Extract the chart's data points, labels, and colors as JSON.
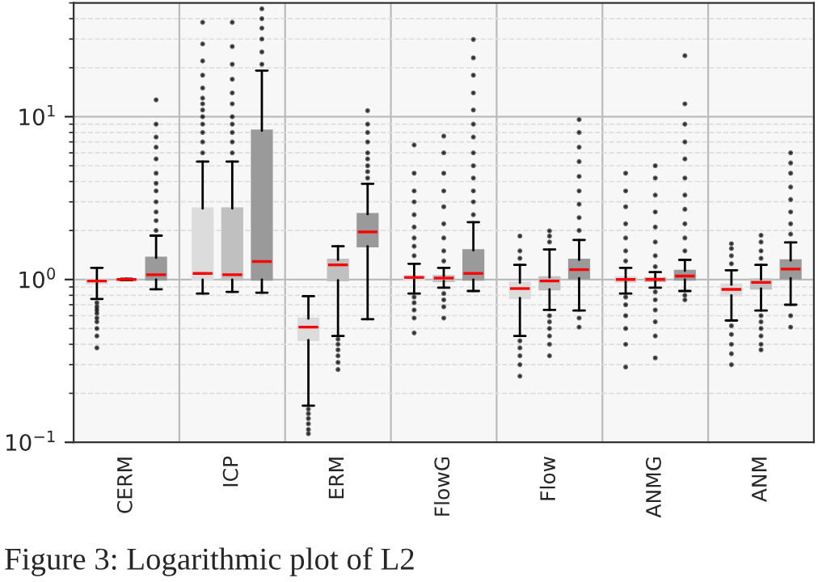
{
  "chart_data": {
    "type": "box",
    "categories": [
      "CERM",
      "ICP",
      "ERM",
      "FlowG",
      "Flow",
      "ANMG",
      "ANM"
    ],
    "log": true,
    "grid": true,
    "ylim": [
      0.1,
      50
    ],
    "yticks": [
      {
        "value": 0.1,
        "label": "10$^{−1}$"
      },
      {
        "value": 1,
        "label": "10$^{0}$"
      },
      {
        "value": 10,
        "label": "10$^{1}$"
      }
    ],
    "series": [
      {
        "color": "#dcdcdc",
        "boxes": [
          {
            "low": 0.76,
            "q1": 0.95,
            "median": 0.98,
            "q3": 1.0,
            "high": 1.18,
            "outliers": [
              0.72,
              0.68,
              0.65,
              0.62,
              0.58,
              0.55,
              0.5,
              0.45,
              0.38
            ]
          },
          {
            "low": 0.82,
            "q1": 1.0,
            "median": 1.09,
            "q3": 2.73,
            "high": 5.3,
            "outliers": [
              6,
              7,
              8,
              9,
              10,
              11,
              12,
              13,
              15,
              18,
              22,
              28,
              38
            ]
          },
          {
            "low": 0.168,
            "q1": 0.425,
            "median": 0.51,
            "q3": 0.575,
            "high": 0.79,
            "outliers": [
              0.16,
              0.15,
              0.14,
              0.13,
              0.12,
              0.113
            ]
          },
          {
            "low": 0.82,
            "q1": 1.0,
            "median": 1.03,
            "q3": 1.05,
            "high": 1.25,
            "outliers": [
              1.4,
              1.6,
              1.8,
              2.1,
              2.5,
              3,
              3.5,
              4.5,
              6.7,
              0.78,
              0.72,
              0.65,
              0.58,
              0.47
            ]
          },
          {
            "low": 0.45,
            "q1": 0.77,
            "median": 0.88,
            "q3": 0.955,
            "high": 1.23,
            "outliers": [
              1.35,
              1.5,
              1.85,
              0.42,
              0.38,
              0.34,
              0.3,
              0.255
            ]
          },
          {
            "low": 0.82,
            "q1": 0.97,
            "median": 1.0,
            "q3": 1.03,
            "high": 1.18,
            "outliers": [
              1.3,
              1.5,
              1.8,
              2.2,
              2.8,
              3.5,
              4.5,
              0.78,
              0.7,
              0.6,
              0.5,
              0.4,
              0.29
            ]
          },
          {
            "low": 0.56,
            "q1": 0.8,
            "median": 0.87,
            "q3": 0.93,
            "high": 1.14,
            "outliers": [
              1.25,
              1.4,
              1.55,
              1.66,
              0.52,
              0.46,
              0.4,
              0.35,
              0.3
            ]
          }
        ]
      },
      {
        "color": "#c0c0c0",
        "boxes": [
          {
            "low": 0.99,
            "q1": 1.0,
            "median": 1.0,
            "q3": 1.0,
            "high": 1.01
          },
          {
            "low": 0.84,
            "q1": 1.0,
            "median": 1.07,
            "q3": 2.73,
            "high": 5.3,
            "outliers": [
              6,
              7,
              8,
              9,
              10,
              12,
              14,
              17,
              21,
              27,
              38
            ]
          },
          {
            "low": 0.45,
            "q1": 0.99,
            "median": 1.23,
            "q3": 1.32,
            "high": 1.6,
            "outliers": [
              0.43,
              0.4,
              0.37,
              0.34,
              0.31,
              0.28
            ]
          },
          {
            "low": 0.89,
            "q1": 0.98,
            "median": 1.02,
            "q3": 1.05,
            "high": 1.18,
            "outliers": [
              1.3,
              1.5,
              1.8,
              2.2,
              2.8,
              3.5,
              4.5,
              6,
              7.6,
              0.82,
              0.75,
              0.68,
              0.58
            ]
          },
          {
            "low": 0.65,
            "q1": 0.87,
            "median": 0.98,
            "q3": 1.03,
            "high": 1.53,
            "outliers": [
              1.7,
              1.85,
              1.99,
              0.6,
              0.55,
              0.5,
              0.45,
              0.4,
              0.34
            ]
          },
          {
            "low": 0.89,
            "q1": 0.98,
            "median": 1.0,
            "q3": 1.02,
            "high": 1.11,
            "outliers": [
              1.2,
              1.4,
              1.7,
              2.1,
              2.6,
              3.3,
              4.2,
              5.0,
              0.84,
              0.75,
              0.65,
              0.55,
              0.45,
              0.33
            ]
          },
          {
            "low": 0.645,
            "q1": 0.88,
            "median": 0.96,
            "q3": 1.0,
            "high": 1.23,
            "outliers": [
              1.35,
              1.5,
              1.7,
              1.87,
              0.6,
              0.55,
              0.5,
              0.45,
              0.4,
              0.37
            ]
          }
        ]
      },
      {
        "color": "#9a9a9a",
        "boxes": [
          {
            "low": 0.87,
            "q1": 1.0,
            "median": 1.07,
            "q3": 1.36,
            "high": 1.86,
            "outliers": [
              2.0,
              2.3,
              2.6,
              3,
              3.5,
              3.9,
              4.5,
              5.5,
              6.5,
              7.5,
              9,
              12.7
            ]
          },
          {
            "low": 0.83,
            "q1": 1.0,
            "median": 1.29,
            "q3": 8.2,
            "high": 19.2,
            "outliers": [
              21,
              25,
              30,
              35,
              40,
              46
            ]
          },
          {
            "low": 0.57,
            "q1": 1.6,
            "median": 1.96,
            "q3": 2.52,
            "high": 3.87,
            "outliers": [
              4.2,
              4.6,
              5,
              5.5,
              6,
              7,
              8,
              9,
              10.9
            ]
          },
          {
            "low": 0.85,
            "q1": 1.0,
            "median": 1.09,
            "q3": 1.51,
            "high": 2.25,
            "outliers": [
              2.5,
              3,
              3.5,
              4.2,
              5,
              6,
              7.5,
              9,
              11,
              14,
              18,
              23,
              29.8
            ]
          },
          {
            "low": 0.645,
            "q1": 1.02,
            "median": 1.15,
            "q3": 1.32,
            "high": 1.75,
            "outliers": [
              2,
              2.4,
              2.9,
              3.5,
              4.3,
              5.3,
              6.5,
              8,
              9.6,
              0.58,
              0.51
            ]
          },
          {
            "low": 0.85,
            "q1": 1.0,
            "median": 1.05,
            "q3": 1.13,
            "high": 1.32,
            "outliers": [
              1.5,
              1.8,
              2.2,
              2.7,
              3.3,
              4.2,
              5.5,
              7,
              9,
              12,
              23.7,
              0.8,
              0.75
            ]
          },
          {
            "low": 0.7,
            "q1": 1.02,
            "median": 1.16,
            "q3": 1.31,
            "high": 1.69,
            "outliers": [
              1.9,
              2.2,
              2.6,
              3.1,
              3.7,
              4.5,
              5.2,
              6.0,
              0.6,
              0.51
            ]
          }
        ]
      }
    ],
    "annotations": [
      "Figure 3: Logarithmic plot of L2"
    ]
  }
}
